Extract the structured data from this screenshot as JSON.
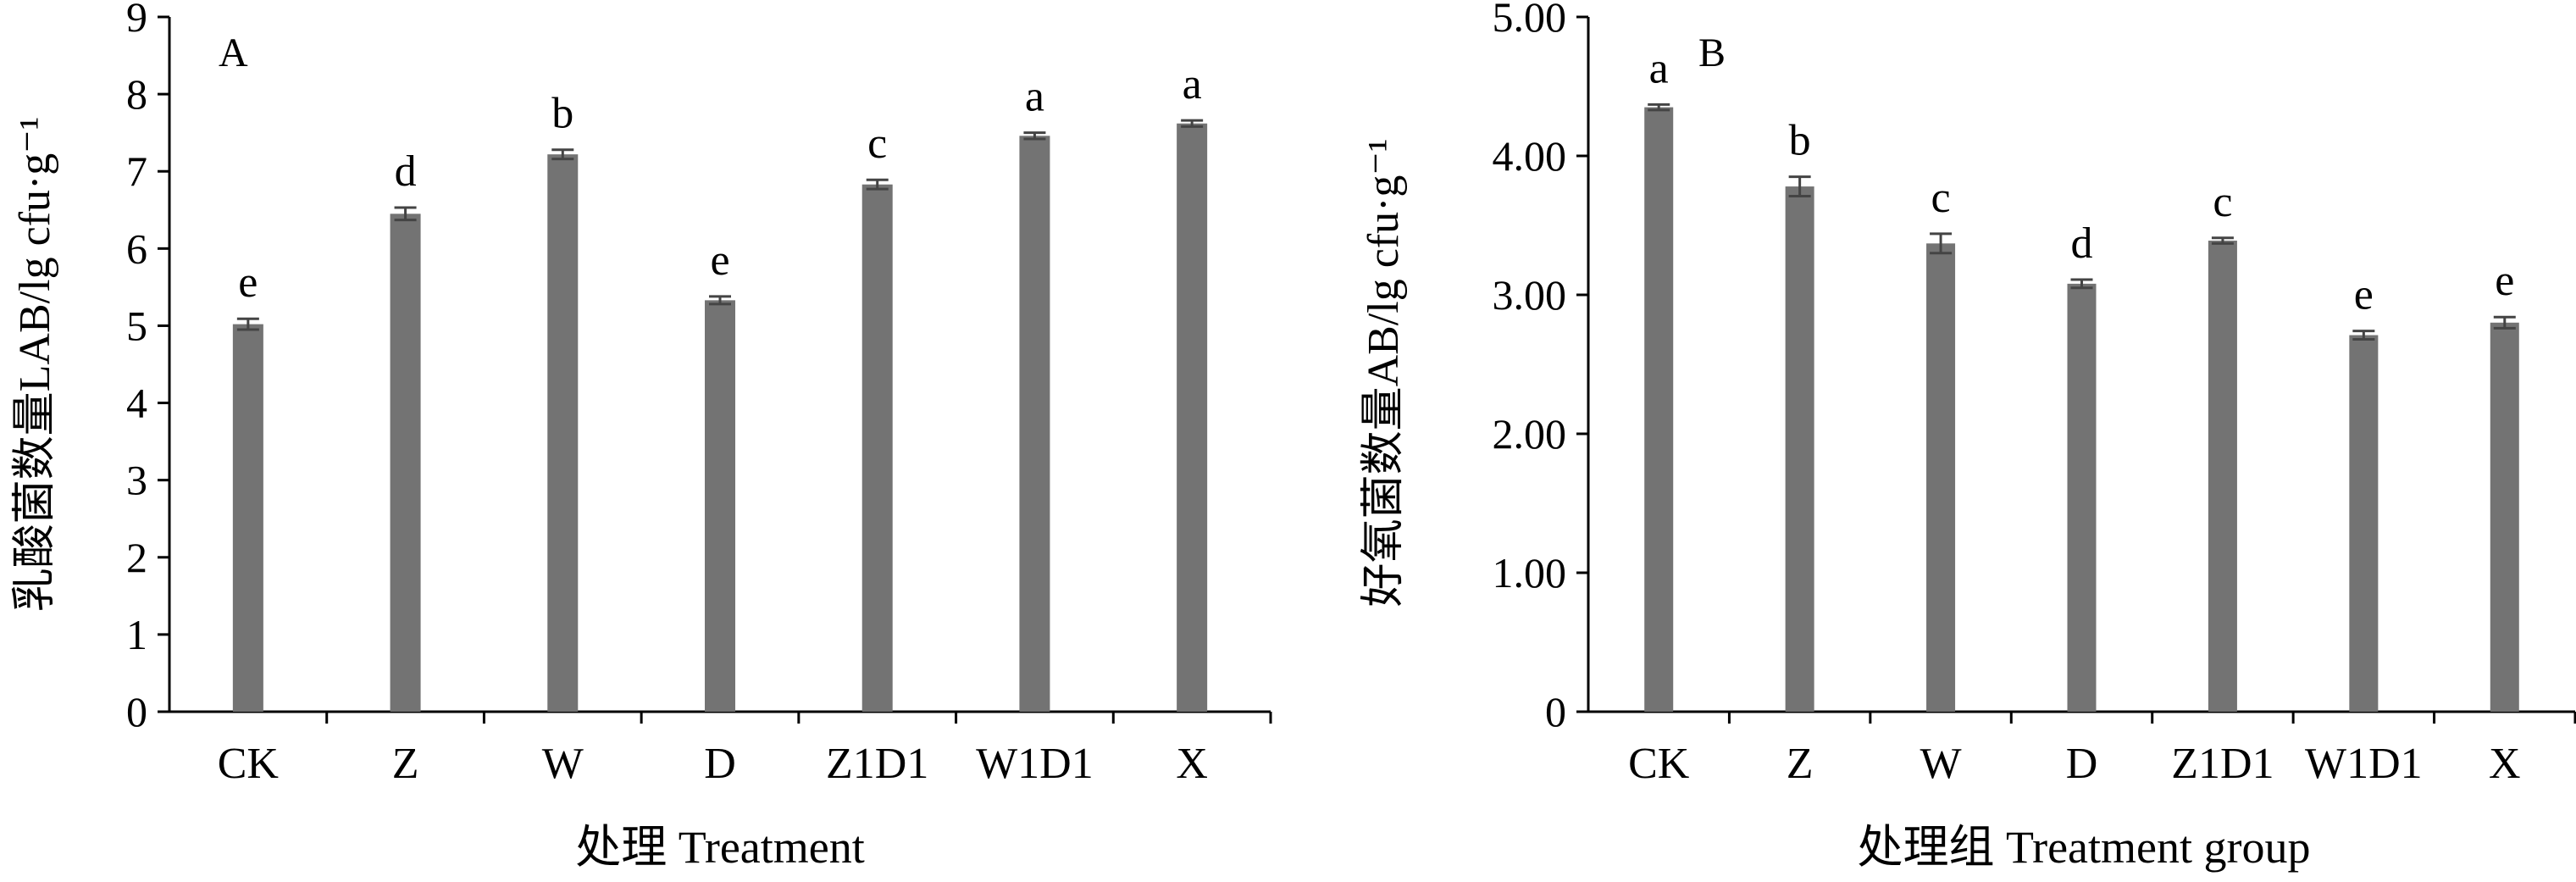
{
  "chart_data": [
    {
      "type": "bar",
      "panel_label": "A",
      "categories": [
        "CK",
        "Z",
        "W",
        "D",
        "Z1D1",
        "W1D1",
        "X"
      ],
      "values": [
        5.02,
        6.45,
        7.22,
        5.33,
        6.83,
        7.46,
        7.62
      ],
      "errors": [
        0.07,
        0.08,
        0.06,
        0.05,
        0.06,
        0.04,
        0.04
      ],
      "significance": [
        "e",
        "d",
        "b",
        "e",
        "c",
        "a",
        "a"
      ],
      "ylabel": "乳酸菌数量LAB/lg cfu·g⁻¹",
      "xlabel": "处理 Treatment",
      "ylim": [
        0,
        9
      ],
      "yticks": [
        "0",
        "1",
        "2",
        "3",
        "4",
        "5",
        "6",
        "7",
        "8",
        "9"
      ],
      "ytick_values": [
        0,
        1,
        2,
        3,
        4,
        5,
        6,
        7,
        8,
        9
      ],
      "grid": false,
      "bar_color": "#737373"
    },
    {
      "type": "bar",
      "panel_label": "B",
      "categories": [
        "CK",
        "Z",
        "W",
        "D",
        "Z1D1",
        "W1D1",
        "X"
      ],
      "values": [
        4.35,
        3.78,
        3.37,
        3.08,
        3.39,
        2.71,
        2.8
      ],
      "errors": [
        0.02,
        0.07,
        0.07,
        0.03,
        0.02,
        0.03,
        0.04
      ],
      "significance": [
        "a",
        "b",
        "c",
        "d",
        "c",
        "e",
        "e"
      ],
      "ylabel": "好氧菌数量AB/lg cfu·g⁻¹",
      "xlabel": "处理组 Treatment group",
      "ylim": [
        0,
        5
      ],
      "yticks": [
        "0",
        "1.00",
        "2.00",
        "3.00",
        "4.00",
        "5.00"
      ],
      "ytick_values": [
        0,
        1,
        2,
        3,
        4,
        5
      ],
      "grid": false,
      "bar_color": "#737373"
    }
  ]
}
